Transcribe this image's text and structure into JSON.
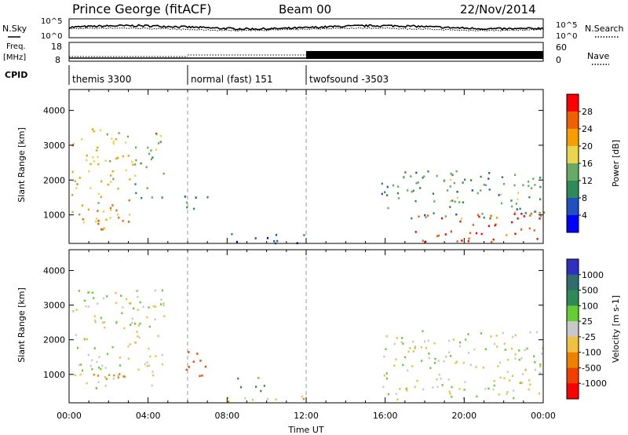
{
  "header": {
    "station": "Prince George (fitACF)",
    "beam": "Beam 00",
    "date": "22/Nov/2014"
  },
  "strip_labels": {
    "nsky": "N.Sky",
    "nsearch": "N.Search",
    "freq_top": "Freq.",
    "freq_unit": "[MHz]",
    "nave": "Nave",
    "cpid": "CPID"
  },
  "noise_axis": {
    "left_ticks": [
      "10^5",
      "10^0"
    ],
    "right_ticks": [
      "10^5",
      "10^0"
    ]
  },
  "freq_axis": {
    "left_ticks": [
      "18",
      "8"
    ],
    "right_ticks": [
      "60",
      "0"
    ]
  },
  "cpid": {
    "segments": [
      {
        "label": "themis 3300",
        "start": 0,
        "end": 6
      },
      {
        "label": "normal (fast) 151",
        "start": 6,
        "end": 12
      },
      {
        "label": "twofsound -3503",
        "start": 12,
        "end": 24
      }
    ]
  },
  "colors": {
    "power_scale": [
      "#0000ff",
      "#2050c0",
      "#2e8b57",
      "#66aa66",
      "#e8d44d",
      "#f5a000",
      "#f06000",
      "#ff0000"
    ],
    "velocity_scale": [
      "#3030c0",
      "#2e6e6e",
      "#2e8b57",
      "#66cc33",
      "#c8c8c8",
      "#f0c040",
      "#f08000",
      "#f04000",
      "#ff0000"
    ],
    "empty": "#ffffff"
  },
  "chart_data": {
    "type": "heatmap",
    "x_axis": {
      "label": "Time UT",
      "range_hours": [
        0,
        24
      ],
      "ticks": [
        "00:00",
        "04:00",
        "08:00",
        "12:00",
        "16:00",
        "20:00",
        "00:00"
      ]
    },
    "y_axis": {
      "label": "Slant Range [km]",
      "range_km": [
        180,
        4600
      ],
      "ticks": [
        "1000",
        "2000",
        "3000",
        "4000"
      ],
      "tick_values": [
        1000,
        2000,
        3000,
        4000
      ]
    },
    "panels": [
      {
        "name": "power",
        "colorbar_label": "Power [dB]",
        "colorbar_ticks": [
          "28",
          "24",
          "20",
          "16",
          "12",
          "8",
          "4"
        ],
        "scale": [
          0,
          32
        ],
        "regions": [
          {
            "t": [
              0.1,
              3.2
            ],
            "r": [
              800,
              3500
            ],
            "value": 20
          },
          {
            "t": [
              1.2,
              2.8
            ],
            "r": [
              500,
              1200
            ],
            "value": 26
          },
          {
            "t": [
              3.3,
              4.9
            ],
            "r": [
              1500,
              3400
            ],
            "value": 14
          },
          {
            "t": [
              5.8,
              7.2
            ],
            "r": [
              1100,
              1600
            ],
            "value": 10
          },
          {
            "t": [
              8.0,
              12.0
            ],
            "r": [
              200,
              500
            ],
            "value": 6
          },
          {
            "t": [
              15.8,
              24.0
            ],
            "r": [
              900,
              2300
            ],
            "value": 12
          },
          {
            "t": [
              17.5,
              24.0
            ],
            "r": [
              250,
              1100
            ],
            "value": 28
          }
        ]
      },
      {
        "name": "velocity",
        "colorbar_label": "Velocity [m s-1]",
        "colorbar_ticks": [
          "1000",
          "500",
          "100",
          "25",
          "-25",
          "-100",
          "-500",
          "-1000"
        ],
        "scale": [
          -1000,
          1000
        ],
        "regions": [
          {
            "t": [
              0.1,
              4.8
            ],
            "r": [
              700,
              3500
            ],
            "value": 0
          },
          {
            "t": [
              1.2,
              2.8
            ],
            "r": [
              400,
              1100
            ],
            "value": -300
          },
          {
            "t": [
              5.8,
              7.2
            ],
            "r": [
              900,
              1700
            ],
            "value": -700
          },
          {
            "t": [
              8.5,
              10.0
            ],
            "r": [
              500,
              1000
            ],
            "value": 150
          },
          {
            "t": [
              8.0,
              12.0
            ],
            "r": [
              200,
              450
            ],
            "value": -60
          },
          {
            "t": [
              15.8,
              24.0
            ],
            "r": [
              300,
              2300
            ],
            "value": 0
          }
        ]
      }
    ]
  }
}
